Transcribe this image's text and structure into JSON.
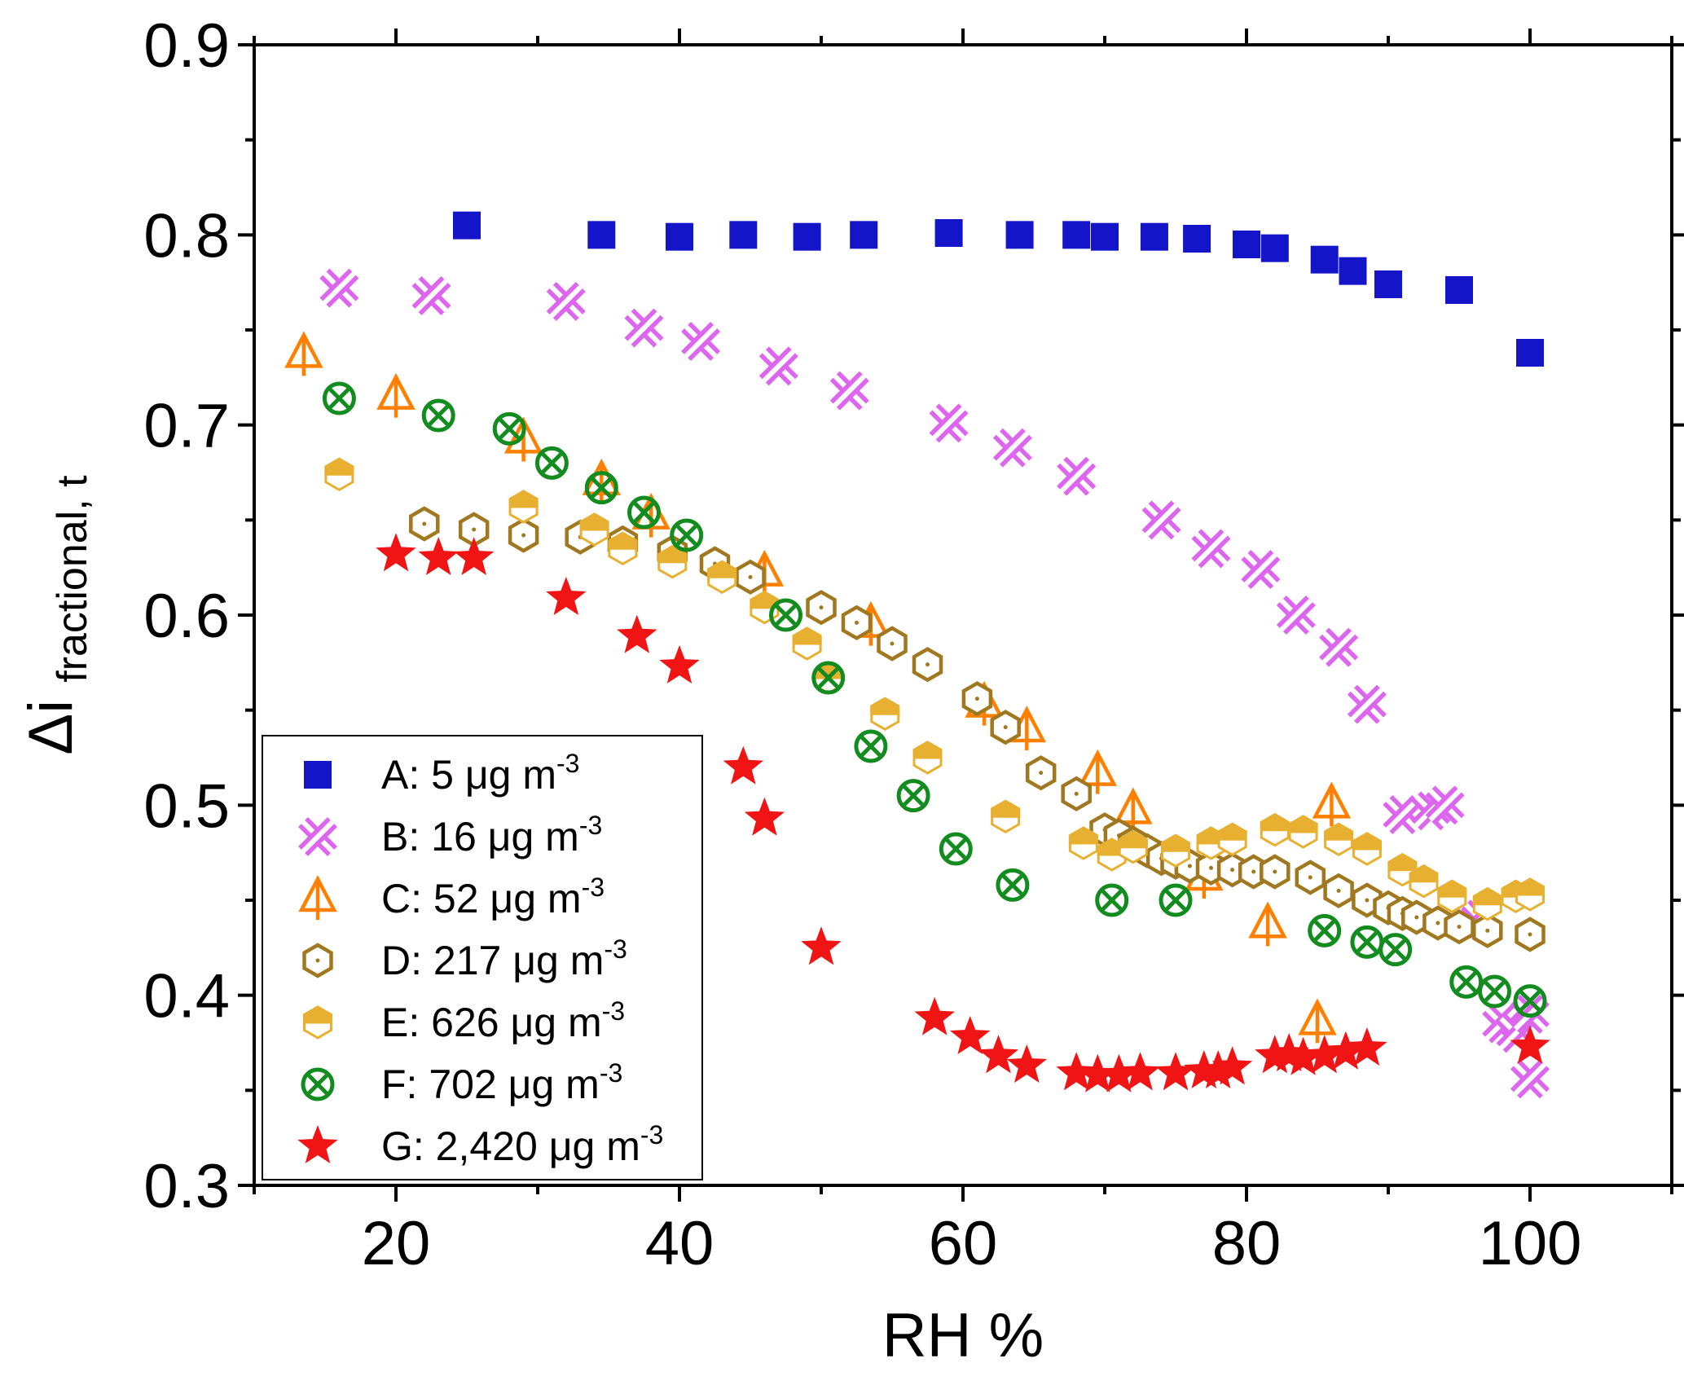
{
  "chart_data": {
    "type": "scatter",
    "xlabel": "RH %",
    "ylabel_main": "Δi",
    "ylabel_sub": "fractional, t",
    "xlim": [
      10,
      110
    ],
    "ylim": [
      0.3,
      0.9
    ],
    "x_ticks": [
      20,
      40,
      60,
      80,
      100
    ],
    "y_ticks": [
      0.3,
      0.4,
      0.5,
      0.6,
      0.7,
      0.8,
      0.9
    ],
    "x_tick_labels": [
      "20",
      "40",
      "60",
      "80",
      "100"
    ],
    "y_tick_labels": [
      "0.3",
      "0.4",
      "0.5",
      "0.6",
      "0.7",
      "0.8",
      "0.9"
    ],
    "grid": false,
    "legend_position": "bottom-left",
    "series": [
      {
        "name": "A: 5 μg m",
        "superscript": "-3",
        "marker": "square",
        "color": "#1414c8",
        "points": [
          [
            25,
            0.805
          ],
          [
            34.5,
            0.8
          ],
          [
            40,
            0.799
          ],
          [
            44.5,
            0.8
          ],
          [
            49,
            0.799
          ],
          [
            53,
            0.8
          ],
          [
            59,
            0.801
          ],
          [
            64,
            0.8
          ],
          [
            68,
            0.8
          ],
          [
            70,
            0.799
          ],
          [
            73.5,
            0.799
          ],
          [
            76.5,
            0.798
          ],
          [
            80,
            0.795
          ],
          [
            82,
            0.793
          ],
          [
            85.5,
            0.787
          ],
          [
            87.5,
            0.781
          ],
          [
            90,
            0.774
          ],
          [
            95,
            0.771
          ],
          [
            100,
            0.738
          ]
        ]
      },
      {
        "name": "B: 16 μg m",
        "superscript": "-3",
        "marker": "cross",
        "color": "#dd66ee",
        "points": [
          [
            16,
            0.772
          ],
          [
            22.5,
            0.768
          ],
          [
            32,
            0.765
          ],
          [
            37.5,
            0.751
          ],
          [
            41.5,
            0.744
          ],
          [
            47,
            0.731
          ],
          [
            52,
            0.718
          ],
          [
            59,
            0.701
          ],
          [
            63.5,
            0.688
          ],
          [
            68,
            0.673
          ],
          [
            74,
            0.65
          ],
          [
            77.5,
            0.635
          ],
          [
            81,
            0.624
          ],
          [
            83.5,
            0.6
          ],
          [
            86.5,
            0.583
          ],
          [
            88.5,
            0.553
          ],
          [
            91,
            0.495
          ],
          [
            93,
            0.497
          ],
          [
            94,
            0.5
          ],
          [
            96.5,
            0.44
          ],
          [
            98,
            0.385
          ],
          [
            99,
            0.38
          ],
          [
            100,
            0.39
          ],
          [
            100,
            0.356
          ]
        ]
      },
      {
        "name": "C: 52 μg m",
        "superscript": "-3",
        "marker": "triangle",
        "color": "#ff8000",
        "points": [
          [
            13.5,
            0.737
          ],
          [
            20,
            0.715
          ],
          [
            29,
            0.692
          ],
          [
            34.5,
            0.67
          ],
          [
            38,
            0.652
          ],
          [
            46,
            0.622
          ],
          [
            53.5,
            0.595
          ],
          [
            61.5,
            0.553
          ],
          [
            64.5,
            0.54
          ],
          [
            69.5,
            0.517
          ],
          [
            72,
            0.497
          ],
          [
            77,
            0.462
          ],
          [
            81.5,
            0.437
          ],
          [
            85,
            0.386
          ],
          [
            86,
            0.5
          ]
        ]
      },
      {
        "name": "D: 217 μg m",
        "superscript": "-3",
        "marker": "hexagon",
        "color": "#a07820",
        "points": [
          [
            22,
            0.648
          ],
          [
            25.5,
            0.645
          ],
          [
            29,
            0.642
          ],
          [
            33,
            0.641
          ],
          [
            36,
            0.638
          ],
          [
            39.5,
            0.633
          ],
          [
            42.5,
            0.627
          ],
          [
            45,
            0.62
          ],
          [
            50,
            0.604
          ],
          [
            52.5,
            0.596
          ],
          [
            55,
            0.585
          ],
          [
            57.5,
            0.574
          ],
          [
            61,
            0.556
          ],
          [
            63,
            0.541
          ],
          [
            65.5,
            0.517
          ],
          [
            68,
            0.506
          ],
          [
            70,
            0.487
          ],
          [
            71,
            0.484
          ],
          [
            72,
            0.48
          ],
          [
            73,
            0.476
          ],
          [
            74,
            0.472
          ],
          [
            75,
            0.47
          ],
          [
            76,
            0.468
          ],
          [
            77.5,
            0.467
          ],
          [
            79,
            0.466
          ],
          [
            80.5,
            0.465
          ],
          [
            82,
            0.465
          ],
          [
            84.5,
            0.462
          ],
          [
            86.5,
            0.455
          ],
          [
            88.5,
            0.45
          ],
          [
            90,
            0.446
          ],
          [
            91,
            0.443
          ],
          [
            92,
            0.441
          ],
          [
            93.5,
            0.438
          ],
          [
            95,
            0.436
          ],
          [
            97,
            0.434
          ],
          [
            100,
            0.432
          ]
        ]
      },
      {
        "name": "E: 626 μg m",
        "superscript": "-3",
        "marker": "half-hexagon",
        "color": "#e8b030",
        "points": [
          [
            16,
            0.674
          ],
          [
            29,
            0.657
          ],
          [
            34,
            0.645
          ],
          [
            36,
            0.635
          ],
          [
            39.5,
            0.628
          ],
          [
            43,
            0.62
          ],
          [
            46,
            0.604
          ],
          [
            49,
            0.585
          ],
          [
            50.5,
            0.567
          ],
          [
            54.5,
            0.548
          ],
          [
            57.5,
            0.525
          ],
          [
            63,
            0.494
          ],
          [
            68.5,
            0.48
          ],
          [
            70.5,
            0.474
          ],
          [
            72,
            0.478
          ],
          [
            75,
            0.476
          ],
          [
            77.5,
            0.48
          ],
          [
            79,
            0.482
          ],
          [
            82,
            0.487
          ],
          [
            84,
            0.486
          ],
          [
            86.5,
            0.482
          ],
          [
            88.5,
            0.477
          ],
          [
            91,
            0.466
          ],
          [
            92.5,
            0.46
          ],
          [
            94.5,
            0.452
          ],
          [
            97,
            0.448
          ],
          [
            99,
            0.452
          ],
          [
            100,
            0.453
          ]
        ]
      },
      {
        "name": "F: 702 μg m",
        "superscript": "-3",
        "marker": "circle-x",
        "color": "#128c1e",
        "points": [
          [
            16,
            0.714
          ],
          [
            23,
            0.705
          ],
          [
            28,
            0.698
          ],
          [
            31,
            0.68
          ],
          [
            34.5,
            0.667
          ],
          [
            37.5,
            0.654
          ],
          [
            40.5,
            0.642
          ],
          [
            47.5,
            0.6
          ],
          [
            50.5,
            0.567
          ],
          [
            53.5,
            0.531
          ],
          [
            56.5,
            0.505
          ],
          [
            59.5,
            0.477
          ],
          [
            63.5,
            0.458
          ],
          [
            70.5,
            0.45
          ],
          [
            75,
            0.45
          ],
          [
            85.5,
            0.434
          ],
          [
            88.5,
            0.428
          ],
          [
            90.5,
            0.424
          ],
          [
            95.5,
            0.407
          ],
          [
            97.5,
            0.402
          ],
          [
            100,
            0.397
          ]
        ]
      },
      {
        "name": "G: 2,420 μg m",
        "superscript": "-3",
        "marker": "star",
        "color": "#f01414",
        "points": [
          [
            20,
            0.632
          ],
          [
            23,
            0.63
          ],
          [
            25.5,
            0.63
          ],
          [
            32,
            0.609
          ],
          [
            37,
            0.589
          ],
          [
            40,
            0.573
          ],
          [
            44.5,
            0.52
          ],
          [
            46,
            0.493
          ],
          [
            50,
            0.425
          ],
          [
            58,
            0.388
          ],
          [
            60.5,
            0.378
          ],
          [
            62.5,
            0.368
          ],
          [
            64.5,
            0.363
          ],
          [
            68,
            0.359
          ],
          [
            69.5,
            0.358
          ],
          [
            71,
            0.358
          ],
          [
            72.5,
            0.359
          ],
          [
            75,
            0.359
          ],
          [
            77,
            0.36
          ],
          [
            78,
            0.36
          ],
          [
            79,
            0.362
          ],
          [
            82,
            0.368
          ],
          [
            83,
            0.369
          ],
          [
            84,
            0.367
          ],
          [
            85.5,
            0.368
          ],
          [
            87,
            0.37
          ],
          [
            88.5,
            0.372
          ],
          [
            100,
            0.373
          ]
        ]
      }
    ]
  }
}
